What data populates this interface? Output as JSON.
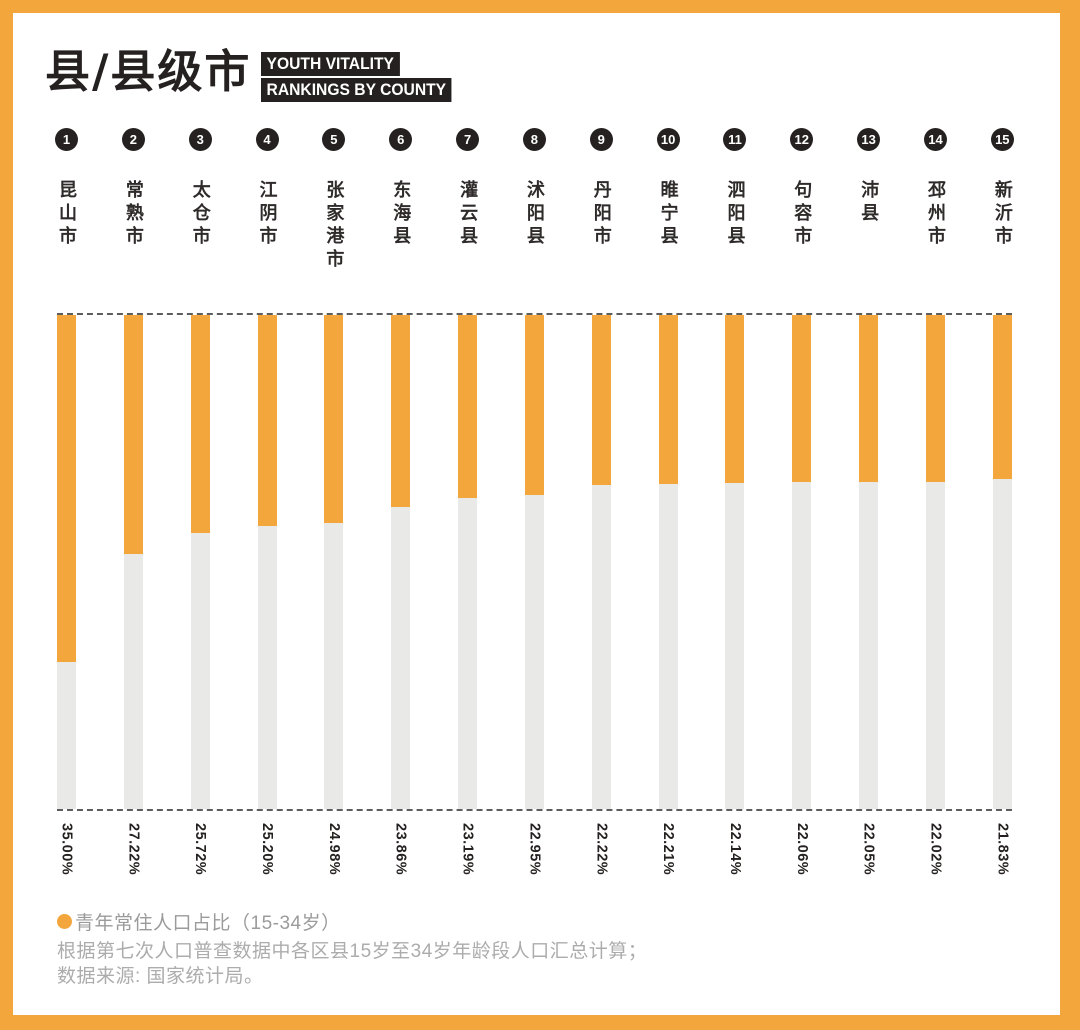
{
  "header": {
    "title": "县/县级市",
    "tags": [
      "YOUTH VITALITY",
      "RANKINGS BY COUNTY"
    ]
  },
  "chart_data": {
    "type": "bar",
    "orientation": "vertical",
    "title": "县/县级市 YOUTH VITALITY RANKINGS BY COUNTY",
    "ranks": [
      "1",
      "2",
      "3",
      "4",
      "5",
      "6",
      "7",
      "8",
      "9",
      "10",
      "11",
      "12",
      "13",
      "14",
      "15"
    ],
    "categories": [
      "昆山市",
      "常熟市",
      "太仓市",
      "江阴市",
      "张家港市",
      "东海县",
      "灌云县",
      "沭阳县",
      "丹阳市",
      "睢宁县",
      "泗阳县",
      "句容市",
      "沛县",
      "邳州市",
      "新沂市"
    ],
    "series": [
      {
        "name": "青年常住人口占比（15-34岁）",
        "values": [
          35.0,
          27.22,
          25.72,
          25.2,
          24.98,
          23.86,
          23.19,
          22.95,
          22.22,
          22.21,
          22.14,
          22.06,
          22.05,
          22.02,
          21.83
        ]
      }
    ],
    "value_labels": [
      "35.00%",
      "27.22%",
      "25.72%",
      "25.20%",
      "24.98%",
      "23.86%",
      "23.19%",
      "22.95%",
      "22.22%",
      "22.21%",
      "22.14%",
      "22.06%",
      "22.05%",
      "22.02%",
      "21.83%"
    ],
    "implied_axis": {
      "bar_bottom_value": 10,
      "bar_top_value": 45.6,
      "gridlines": "dashed top and bottom only"
    },
    "legend_position": "bottom-left",
    "colors": {
      "bar_fill": "#F3A63C",
      "bar_track": "#E9E9E8",
      "frame": "#F3A63C",
      "ink": "#262121"
    }
  },
  "legend": {
    "label": "青年常住人口占比（15-34岁）"
  },
  "notes": {
    "line1": "根据第七次人口普查数据中各区县15岁至34岁年龄段人口汇总计算；",
    "line2": "数据来源: 国家统计局。"
  }
}
